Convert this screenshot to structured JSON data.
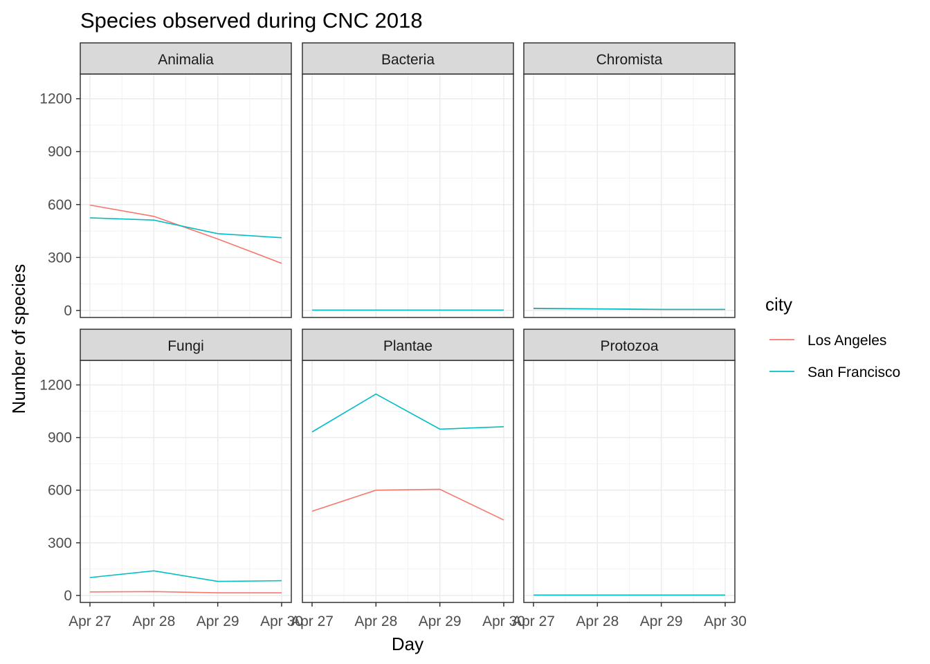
{
  "chart_data": {
    "type": "line",
    "title": "Species observed during CNC 2018",
    "xlabel": "Day",
    "ylabel": "Number of species",
    "x": [
      "Apr 27",
      "Apr 28",
      "Apr 29",
      "Apr 30"
    ],
    "ylim": [
      -40,
      1340
    ],
    "yticks": [
      0,
      300,
      600,
      900,
      1200
    ],
    "grid": true,
    "legend": {
      "title": "city",
      "position": "right",
      "entries": [
        {
          "name": "Los Angeles",
          "color": "#F8766D"
        },
        {
          "name": "San Francisco",
          "color": "#00BFC4"
        }
      ]
    },
    "facets": [
      {
        "label": "Animalia",
        "series": [
          {
            "name": "Los Angeles",
            "values": [
              597,
              533,
              405,
              267
            ]
          },
          {
            "name": "San Francisco",
            "values": [
              525,
              512,
              435,
              412
            ]
          }
        ]
      },
      {
        "label": "Bacteria",
        "series": [
          {
            "name": "Los Angeles",
            "values": [
              2,
              2,
              2,
              2
            ]
          },
          {
            "name": "San Francisco",
            "values": [
              2,
              2,
              2,
              2
            ]
          }
        ]
      },
      {
        "label": "Chromista",
        "series": [
          {
            "name": "Los Angeles",
            "values": [
              10,
              8,
              5,
              5
            ]
          },
          {
            "name": "San Francisco",
            "values": [
              12,
              9,
              6,
              6
            ]
          }
        ]
      },
      {
        "label": "Fungi",
        "series": [
          {
            "name": "Los Angeles",
            "values": [
              20,
              22,
              15,
              15
            ]
          },
          {
            "name": "San Francisco",
            "values": [
              102,
              140,
              80,
              84
            ]
          }
        ]
      },
      {
        "label": "Plantae",
        "series": [
          {
            "name": "Los Angeles",
            "values": [
              480,
              600,
              605,
              430
            ]
          },
          {
            "name": "San Francisco",
            "values": [
              932,
              1148,
              948,
              962
            ]
          }
        ]
      },
      {
        "label": "Protozoa",
        "series": [
          {
            "name": "Los Angeles",
            "values": [
              2,
              2,
              2,
              2
            ]
          },
          {
            "name": "San Francisco",
            "values": [
              2,
              2,
              2,
              2
            ]
          }
        ]
      }
    ]
  }
}
